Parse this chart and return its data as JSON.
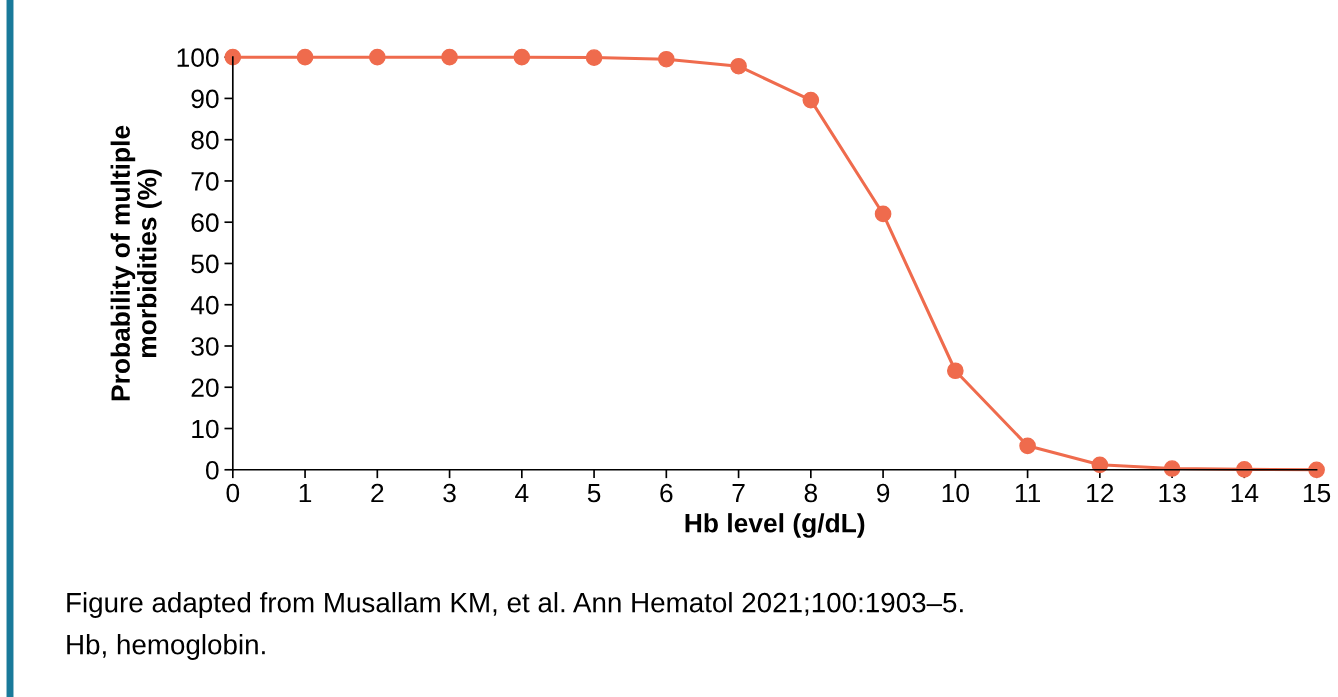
{
  "chart_data": {
    "type": "line",
    "xlabel": "Hb level (g/dL)",
    "ylabel": "Probability of multiple\nmorbidities (%)",
    "x": [
      0,
      1,
      2,
      3,
      4,
      5,
      6,
      7,
      8,
      9,
      10,
      11,
      12,
      13,
      14,
      15
    ],
    "series": [
      {
        "color": "#ef6b4d",
        "values": [
          100,
          100,
          100,
          100,
          100,
          99.9,
          99.5,
          97.8,
          89.6,
          62,
          24,
          5.8,
          1.2,
          0.3,
          0.1,
          0
        ]
      }
    ],
    "xlim": [
      0,
      15
    ],
    "xticks": [
      0,
      1,
      2,
      3,
      4,
      5,
      6,
      7,
      8,
      9,
      10,
      11,
      12,
      13,
      14,
      15
    ],
    "ylim": [
      0,
      100
    ],
    "yticks": [
      0,
      10,
      20,
      30,
      40,
      50,
      60,
      70,
      80,
      90,
      100
    ],
    "marker": "circle",
    "line_style": "solid",
    "grid": false,
    "legend": false,
    "annotations": [
      "Figure adapted from Musallam KM, et al. Ann Hematol 2021;100:1903–5.",
      "Hb, hemoglobin."
    ]
  }
}
